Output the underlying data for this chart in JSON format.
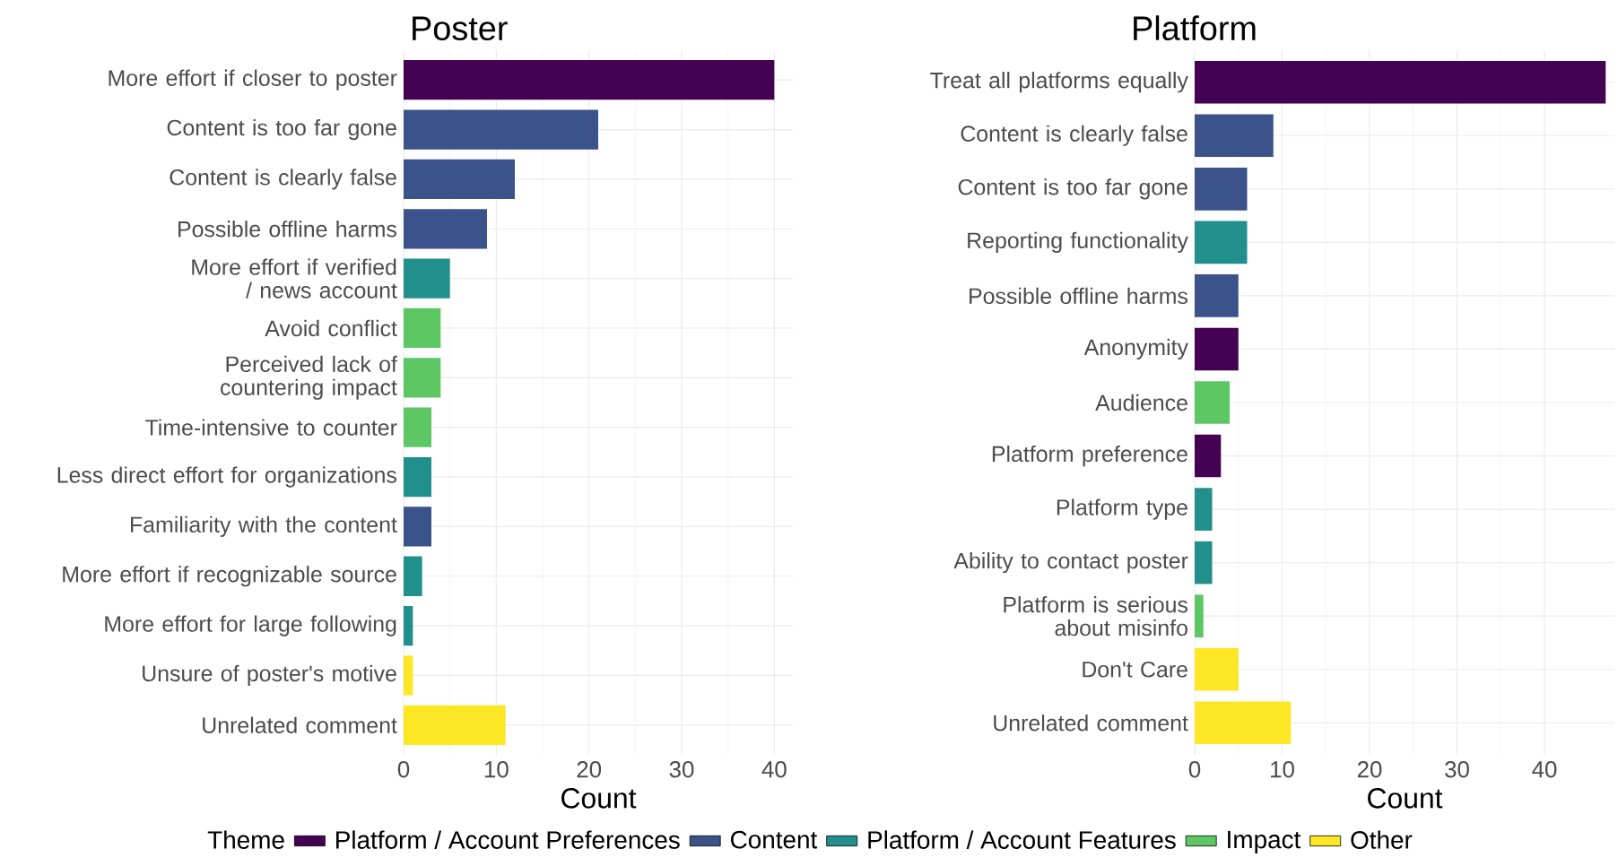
{
  "chart_data": [
    {
      "type": "bar",
      "orientation": "horizontal",
      "stacked": true,
      "title": "Poster",
      "xlabel": "Count",
      "legend_title": "Theme",
      "legend": "bottom",
      "grid": true,
      "categories": [
        "More effort if closer to poster",
        "Content is too far gone",
        "Content is clearly false",
        "Possible offline harms",
        "More effort if verified / news account",
        "Avoid conflict",
        "Perceived lack of countering impact",
        "Time-intensive to counter",
        "Less direct effort for organizations",
        "Familiarity with the content",
        "More effort if recognizable source",
        "More effort for large following",
        "Unsure of poster's motive",
        "Unrelated comment"
      ],
      "xlim": [
        0,
        42
      ],
      "xticks": [
        0,
        10,
        20,
        30,
        40
      ],
      "series": [
        {
          "name": "Platform / Account Preferences",
          "color": "#440154",
          "values": [
            40,
            null,
            null,
            null,
            null,
            null,
            null,
            null,
            null,
            null,
            null,
            null,
            null,
            null
          ]
        },
        {
          "name": "Content",
          "color": "#3b528b",
          "values": [
            null,
            21,
            12,
            9,
            null,
            null,
            null,
            null,
            null,
            3,
            null,
            null,
            null,
            null
          ]
        },
        {
          "name": "Platform / Account Features",
          "color": "#21908c",
          "values": [
            null,
            null,
            null,
            null,
            5,
            null,
            null,
            null,
            3,
            null,
            2,
            1,
            null,
            null
          ]
        },
        {
          "name": "Impact",
          "color": "#5dc863",
          "values": [
            null,
            null,
            null,
            null,
            null,
            4,
            4,
            3,
            null,
            null,
            null,
            null,
            null,
            null
          ]
        },
        {
          "name": "Other",
          "color": "#fde725",
          "values": [
            null,
            null,
            null,
            null,
            null,
            null,
            null,
            null,
            null,
            null,
            null,
            null,
            1,
            11
          ]
        }
      ]
    },
    {
      "type": "bar",
      "orientation": "horizontal",
      "stacked": true,
      "title": "Platform",
      "xlabel": "Count",
      "grid": true,
      "categories": [
        "Treat all platforms equally",
        "Content is clearly false",
        "Content is too far gone",
        "Reporting functionality",
        "Possible offline harms",
        "Anonymity",
        "Audience",
        "Platform preference",
        "Platform type",
        "Ability to contact poster",
        "Platform is serious about misinfo",
        "Don't Care",
        "Unrelated comment"
      ],
      "xlim": [
        0,
        48
      ],
      "xticks": [
        0,
        10,
        20,
        30,
        40
      ],
      "series": [
        {
          "color": "#440154",
          "values": [
            47,
            null,
            null,
            null,
            null,
            5,
            null,
            3,
            null,
            null,
            null,
            null,
            null
          ]
        },
        {
          "color": "#3b528b",
          "values": [
            null,
            9,
            6,
            null,
            5,
            null,
            null,
            null,
            null,
            null,
            null,
            null,
            null
          ]
        },
        {
          "color": "#21908c",
          "values": [
            null,
            null,
            null,
            6,
            null,
            null,
            null,
            null,
            2,
            2,
            null,
            null,
            null
          ]
        },
        {
          "color": "#5dc863",
          "values": [
            null,
            null,
            null,
            null,
            null,
            null,
            4,
            null,
            null,
            null,
            1,
            null,
            null
          ]
        },
        {
          "color": "#fde725",
          "values": [
            null,
            null,
            null,
            null,
            null,
            null,
            null,
            null,
            null,
            null,
            null,
            5,
            11
          ]
        }
      ]
    }
  ]
}
